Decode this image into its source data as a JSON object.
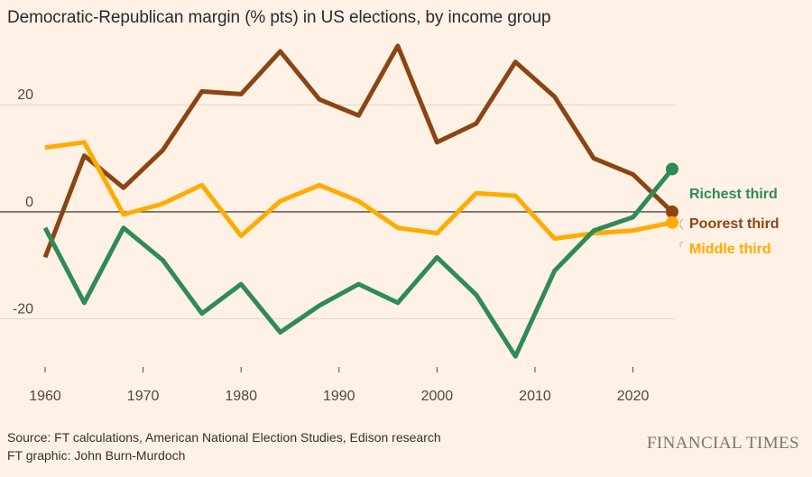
{
  "title": "Democratic-Republican margin (% pts) in US elections, by income group",
  "source_line": "Source: FT calculations, American National Election Studies, Edison research",
  "credit_line": "FT graphic: John Burn-Murdoch",
  "brand": "FINANCIAL TIMES",
  "colors": {
    "background": "#fff1e5",
    "poorest": "#8b4513",
    "middle": "#ffab00",
    "richest": "#2e8b57",
    "gridline": "#e2d6cc",
    "zeroline": "#4d4845"
  },
  "chart_data": {
    "type": "line",
    "title": "Democratic-Republican margin (% pts) in US elections, by income group",
    "xlabel": "",
    "ylabel": "",
    "xlim": [
      1960,
      2024
    ],
    "ylim": [
      -30,
      32
    ],
    "x_ticks": [
      1960,
      1970,
      1980,
      1990,
      2000,
      2010,
      2020
    ],
    "y_ticks": [
      20,
      0,
      -20
    ],
    "grid": "horizontal",
    "legend": "direct labels at line ends",
    "x": [
      1960,
      1964,
      1968,
      1972,
      1976,
      1980,
      1984,
      1988,
      1992,
      1996,
      2000,
      2004,
      2008,
      2012,
      2016,
      2020,
      2024
    ],
    "series": [
      {
        "name": "Richest third",
        "color": "#2e8b57",
        "values": [
          -3,
          -17,
          -3,
          -9,
          -19,
          -13.5,
          -22.5,
          -17.5,
          -13.5,
          -17,
          -8.5,
          -15.5,
          -27,
          -11,
          -3.5,
          -1,
          8
        ]
      },
      {
        "name": "Poorest third",
        "color": "#8b4513",
        "values": [
          -8.5,
          10.5,
          4.5,
          11.5,
          22.5,
          22,
          30,
          21,
          18,
          31,
          13,
          16.5,
          28,
          21.5,
          10,
          7,
          0
        ]
      },
      {
        "name": "Middle third",
        "color": "#ffab00",
        "values": [
          12,
          13,
          -0.5,
          1.5,
          5,
          -4.5,
          2,
          5,
          2,
          -3,
          -4,
          3.5,
          3,
          -5,
          -4,
          -3.5,
          -2
        ]
      }
    ]
  }
}
